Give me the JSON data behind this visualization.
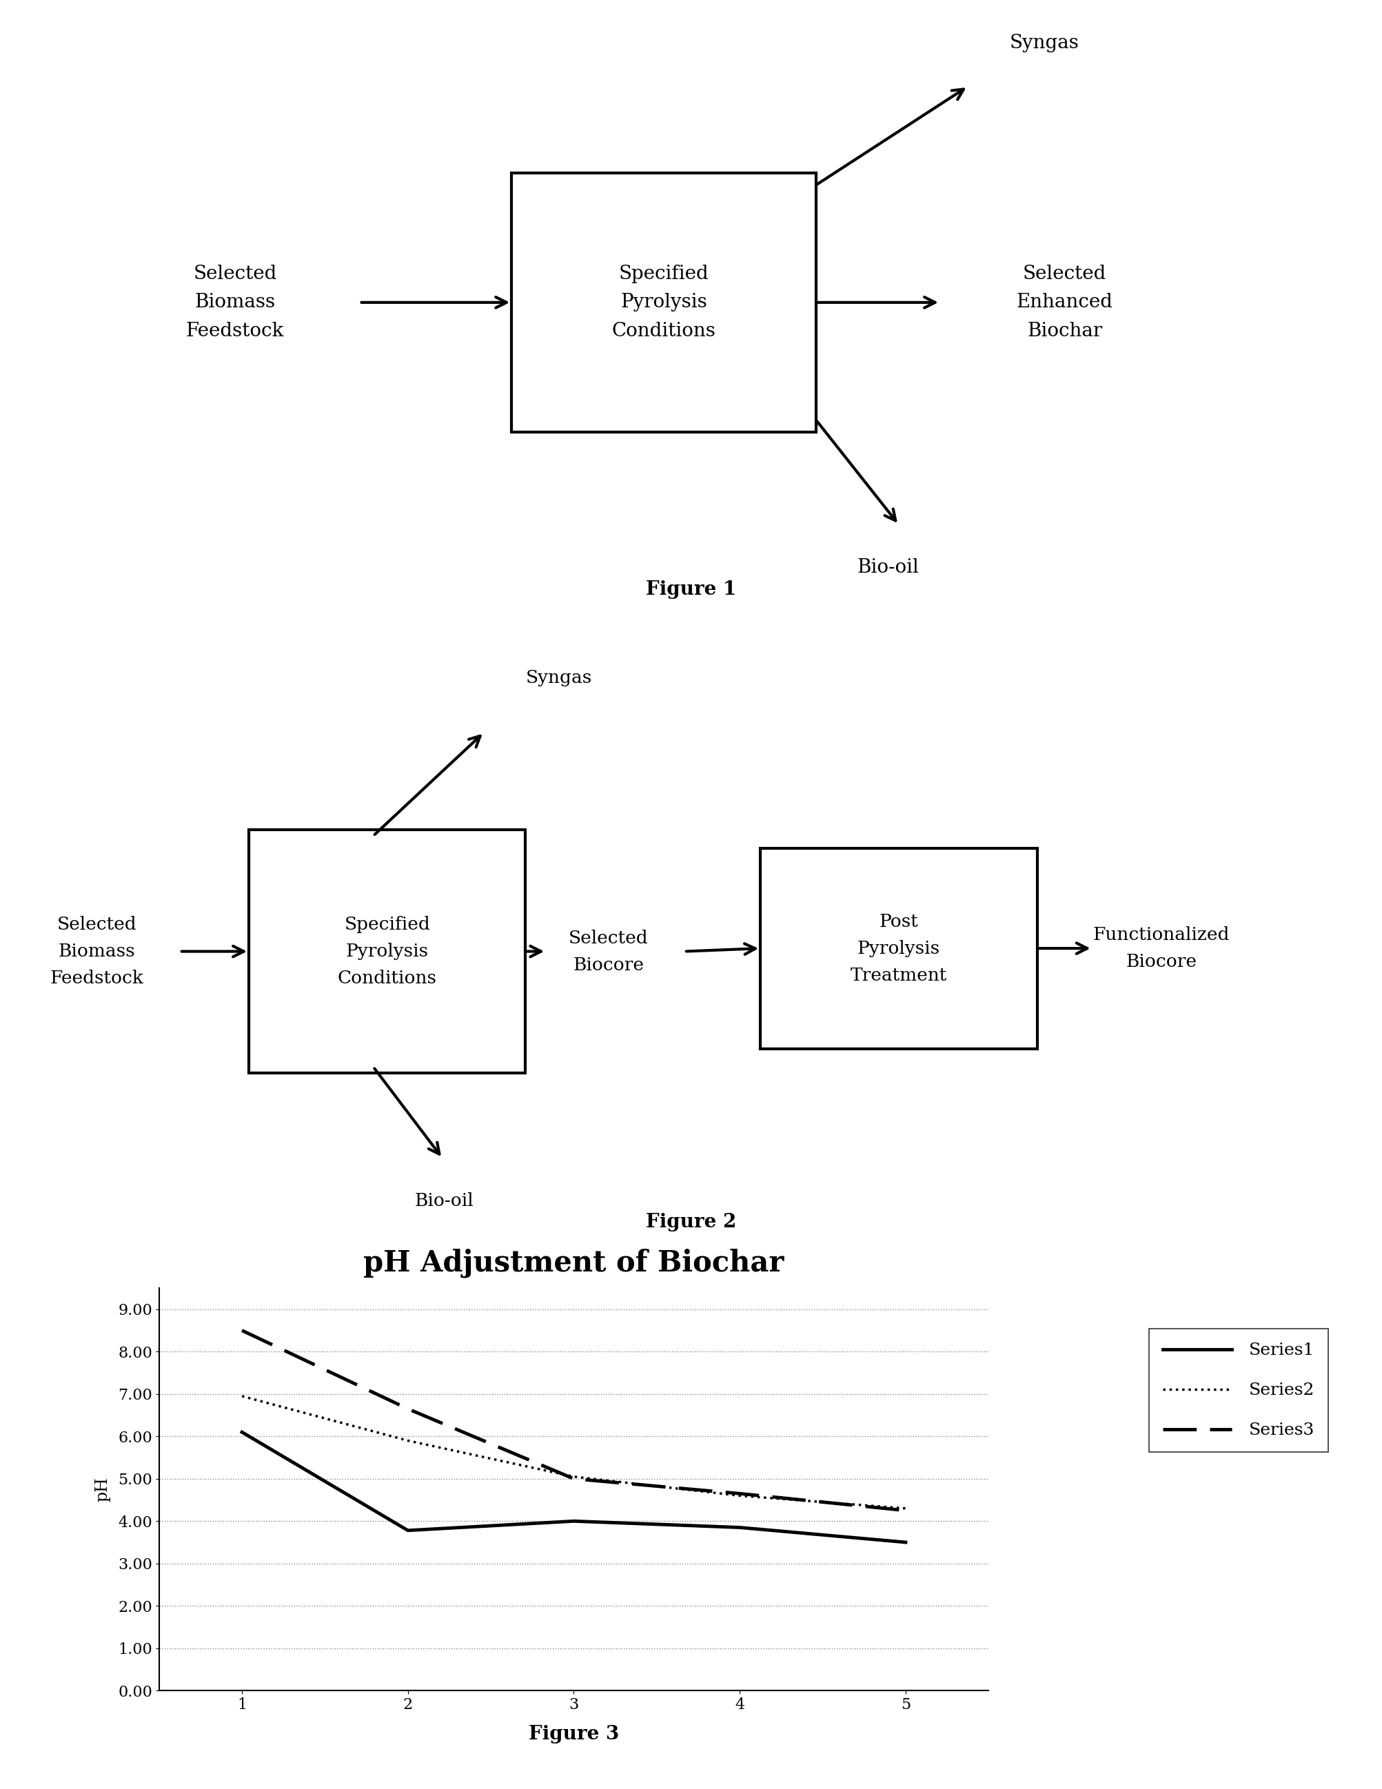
{
  "fig1": {
    "box_text": "Specified\nPyrolysis\nConditions",
    "left_text": "Selected\nBiomass\nFeedstock",
    "right_center_text": "Selected\nEnhanced\nBiochar",
    "right_upper_text": "Syngas",
    "right_lower_text": "Bio-oil",
    "figure_label": "Figure 1"
  },
  "fig2": {
    "box1_text": "Specified\nPyrolysis\nConditions",
    "box2_text": "Post\nPyrolysis\nTreatment",
    "left_text": "Selected\nBiomass\nFeedstock",
    "mid_text": "Selected\nBiocore",
    "right_upper_text": "Syngas",
    "right_lower_text": "Bio-oil",
    "far_right_text": "Functionalized\nBiocore",
    "figure_label": "Figure 2"
  },
  "fig3": {
    "title": "pH Adjustment of Biochar",
    "ylabel": "pH",
    "figure_label": "Figure 3",
    "series1": [
      6.1,
      3.78,
      4.0,
      3.85,
      3.5
    ],
    "series2": [
      6.95,
      5.9,
      5.05,
      4.6,
      4.3
    ],
    "series3": [
      8.5,
      6.65,
      5.0,
      4.65,
      4.25
    ],
    "x": [
      1,
      2,
      3,
      4,
      5
    ],
    "ylim": [
      0.0,
      9.0
    ],
    "yticks": [
      0.0,
      1.0,
      2.0,
      3.0,
      4.0,
      5.0,
      6.0,
      7.0,
      8.0,
      9.0
    ],
    "xticks": [
      1,
      2,
      3,
      4,
      5
    ],
    "legend_labels": [
      "Series1",
      "Series2",
      "Series3"
    ]
  },
  "bg_color": "#ffffff",
  "text_color": "#000000",
  "font_family": "DejaVu Serif"
}
